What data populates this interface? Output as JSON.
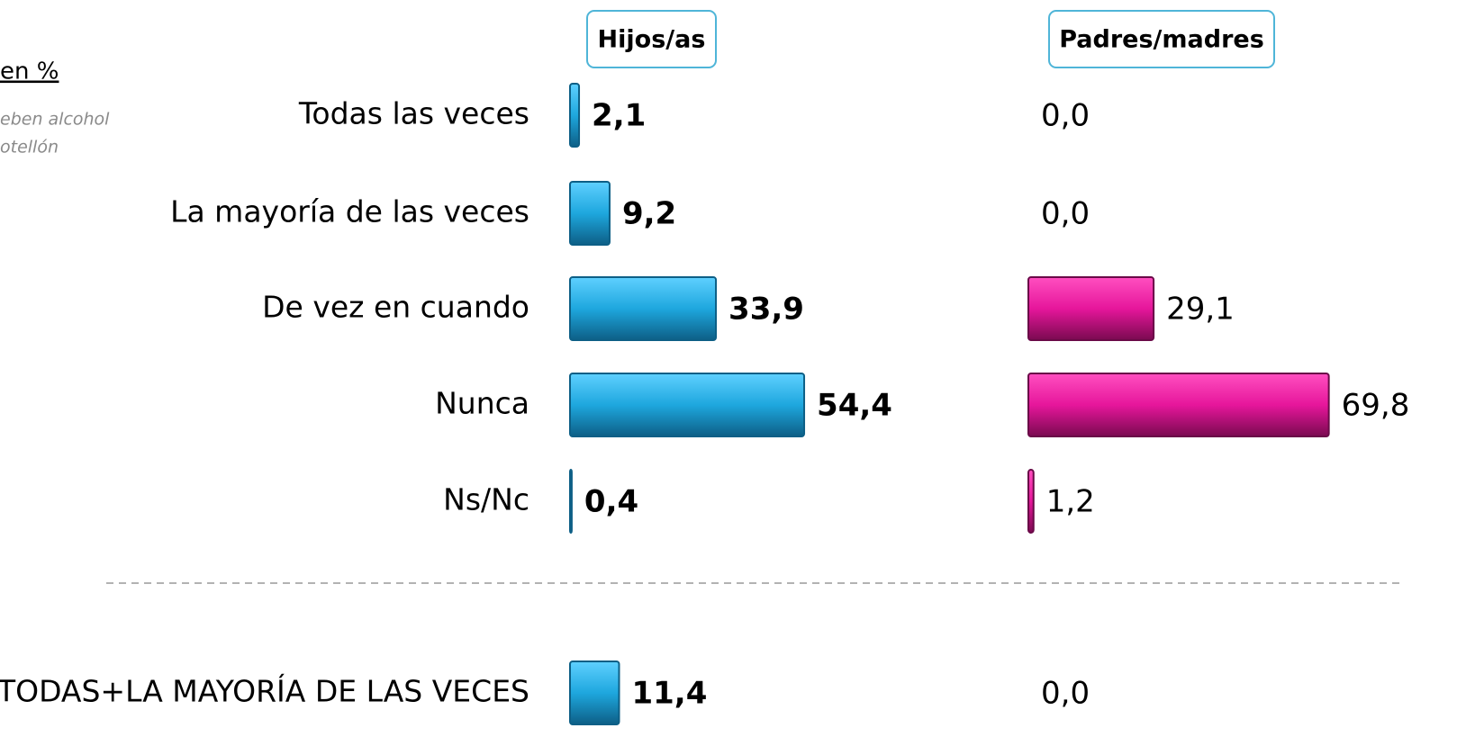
{
  "subtitle": "en %",
  "note": [
    "eben alcohol",
    "otellón"
  ],
  "chart_data": {
    "type": "bar",
    "orientation": "horizontal",
    "categories": [
      "Todas las veces",
      "La mayoría de las veces",
      "De vez en cuando",
      "Nunca",
      "Ns/Nc",
      "TODAS+LA MAYORÍA DE LAS VECES"
    ],
    "series": [
      {
        "name": "Hijos/as",
        "color": "#1ea7de",
        "values": [
          2.1,
          9.2,
          33.9,
          54.4,
          0.4,
          11.4
        ],
        "value_labels": [
          "2,1",
          "9,2",
          "33,9",
          "54,4",
          "0,4",
          "11,4"
        ]
      },
      {
        "name": "Padres/madres",
        "color": "#e6169b",
        "values": [
          0.0,
          0.0,
          29.1,
          69.8,
          1.2,
          0.0
        ],
        "value_labels": [
          "0,0",
          "0,0",
          "29,1",
          "69,8",
          "1,2",
          "0,0"
        ]
      }
    ]
  }
}
